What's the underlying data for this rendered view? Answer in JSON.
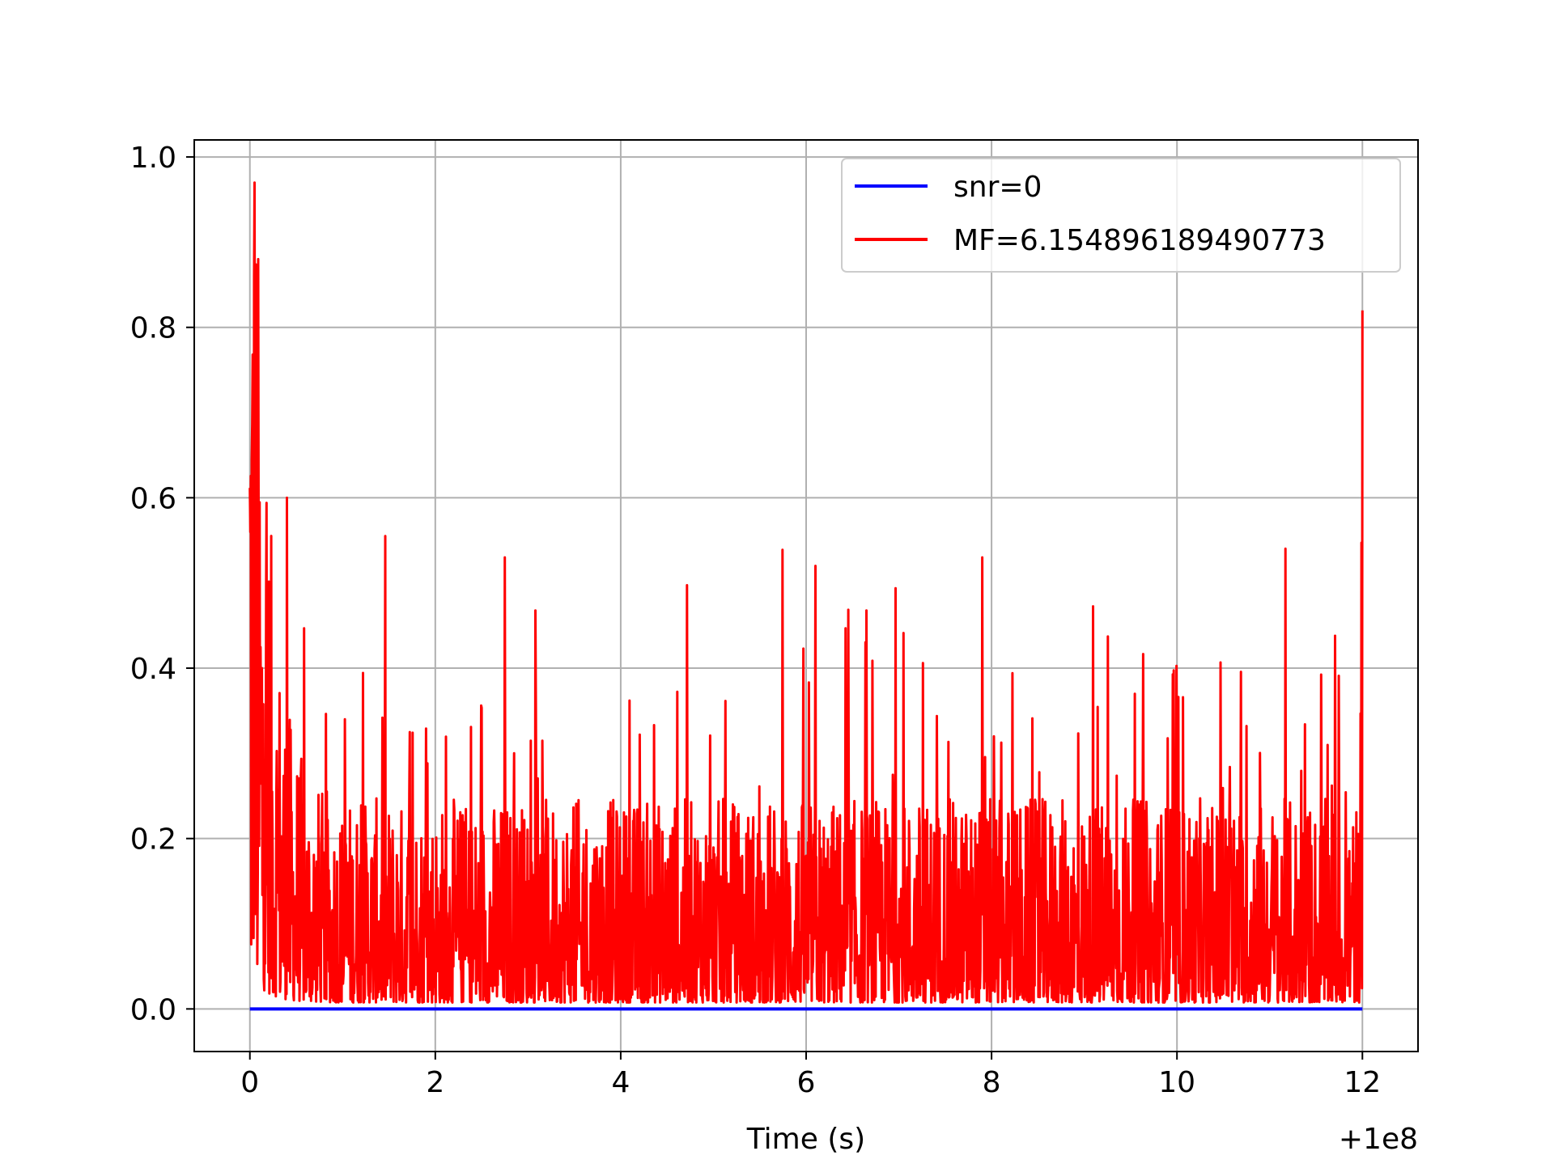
{
  "chart_data": {
    "type": "line",
    "xlabel": "Time (s)",
    "ylabel": "",
    "title": "",
    "x_offset_label": "+1e8",
    "xlim": [
      -0.6,
      12.6
    ],
    "ylim": [
      -0.05,
      1.02
    ],
    "x_ticks": [
      0,
      2,
      4,
      6,
      8,
      10,
      12
    ],
    "x_tick_labels": [
      "0",
      "2",
      "4",
      "6",
      "8",
      "10",
      "12"
    ],
    "y_ticks": [
      0.0,
      0.2,
      0.4,
      0.6,
      0.8,
      1.0
    ],
    "y_tick_labels": [
      "0.0",
      "0.2",
      "0.4",
      "0.6",
      "0.8",
      "1.0"
    ],
    "grid": true,
    "legend_position": "upper right",
    "series": [
      {
        "name": "snr=0",
        "color": "#0000ff",
        "x": [
          0,
          12
        ],
        "y": [
          0,
          0
        ]
      },
      {
        "name": "MF=6.154896189490773",
        "color": "#ff0000",
        "x_range": [
          0,
          12
        ],
        "y_values_at_integer_time": [
          0.82,
          0.15,
          0.17,
          0.18,
          0.17,
          0.16,
          0.16,
          0.17,
          0.17,
          0.17,
          0.16,
          0.16,
          0.82
        ],
        "observed_peaks": [
          {
            "x": 0.05,
            "y": 0.97
          },
          {
            "x": 0.4,
            "y": 0.6
          },
          {
            "x": 2.75,
            "y": 0.53
          },
          {
            "x": 6.1,
            "y": 0.52
          },
          {
            "x": 7.9,
            "y": 0.53
          },
          {
            "x": 12.0,
            "y": 0.82
          }
        ]
      }
    ]
  }
}
